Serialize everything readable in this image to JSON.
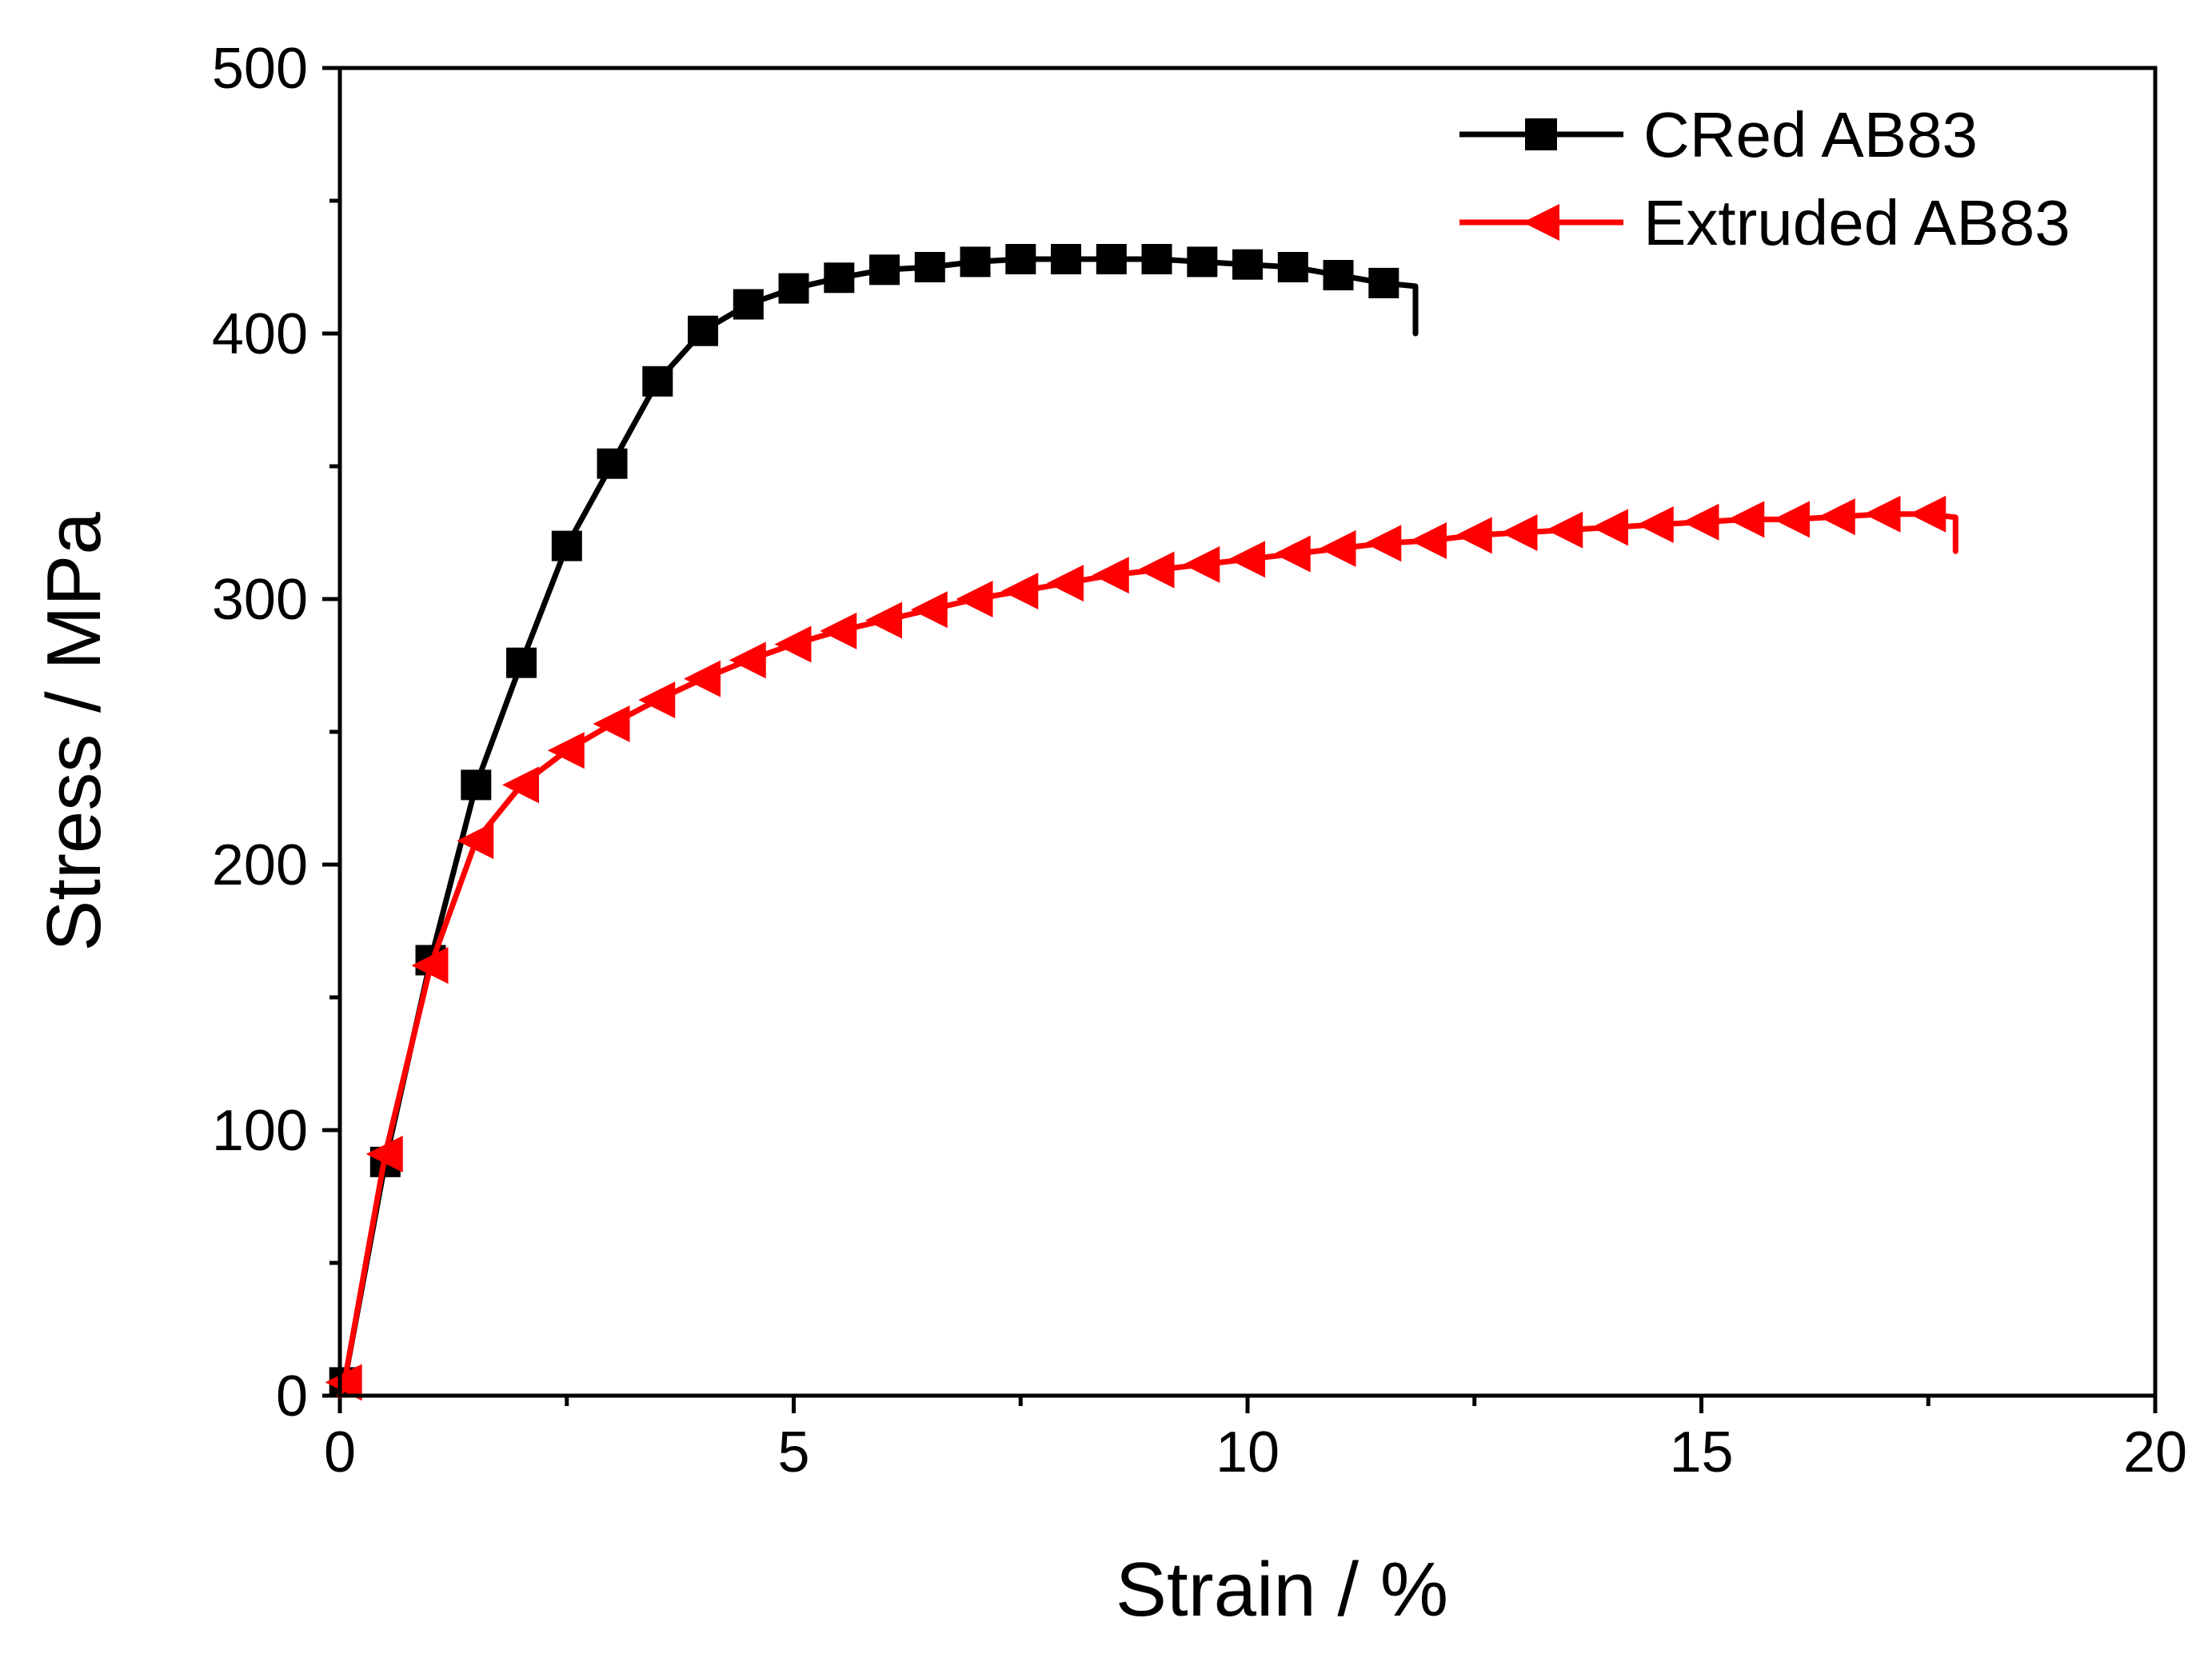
{
  "chart_data": {
    "type": "line",
    "title": "",
    "xlabel": "Strain / %",
    "ylabel": "Stress / MPa",
    "xlim": [
      0,
      20
    ],
    "ylim": [
      0,
      500
    ],
    "x_ticks": [
      0,
      5,
      10,
      15,
      20
    ],
    "y_ticks": [
      0,
      100,
      200,
      300,
      400,
      500
    ],
    "x_tick_labels": [
      "0",
      "5",
      "10",
      "15",
      "20"
    ],
    "y_tick_labels": [
      "0",
      "100",
      "200",
      "300",
      "400",
      "500"
    ],
    "grid": false,
    "legend_position": "top-right",
    "series": [
      {
        "name": "CRed AB83",
        "color": "#000000",
        "marker": "square",
        "end_drop": [
          11.85,
          400
        ],
        "x": [
          0.05,
          0.5,
          1.0,
          1.5,
          2.0,
          2.5,
          3.0,
          3.5,
          4.0,
          4.5,
          5.0,
          5.5,
          6.0,
          6.5,
          7.0,
          7.5,
          8.0,
          8.5,
          9.0,
          9.5,
          10.0,
          10.5,
          11.0,
          11.5
        ],
        "y": [
          5,
          88,
          164,
          230,
          276,
          320,
          351,
          382,
          401,
          411,
          417,
          421,
          424,
          425,
          427,
          428,
          428,
          428,
          428,
          427,
          426,
          425,
          422,
          419
        ]
      },
      {
        "name": "Extruded AB83",
        "color": "#ff0000",
        "marker": "triangle-left",
        "end_drop": [
          17.8,
          318
        ],
        "x": [
          0.05,
          0.5,
          1.0,
          1.5,
          2.0,
          2.5,
          3.0,
          3.5,
          4.0,
          4.5,
          5.0,
          5.5,
          6.0,
          6.5,
          7.0,
          7.5,
          8.0,
          8.5,
          9.0,
          9.5,
          10.0,
          10.5,
          11.0,
          11.5,
          12.0,
          12.5,
          13.0,
          13.5,
          14.0,
          14.5,
          15.0,
          15.5,
          16.0,
          16.5,
          17.0,
          17.5
        ],
        "y": [
          5,
          91,
          162,
          209,
          230,
          243,
          253,
          262,
          270,
          277,
          283,
          288,
          292,
          296,
          300,
          303,
          306,
          309,
          311,
          313,
          315,
          317,
          319,
          321,
          322,
          324,
          325,
          326,
          327,
          328,
          329,
          330,
          330,
          331,
          332,
          332
        ]
      }
    ]
  }
}
